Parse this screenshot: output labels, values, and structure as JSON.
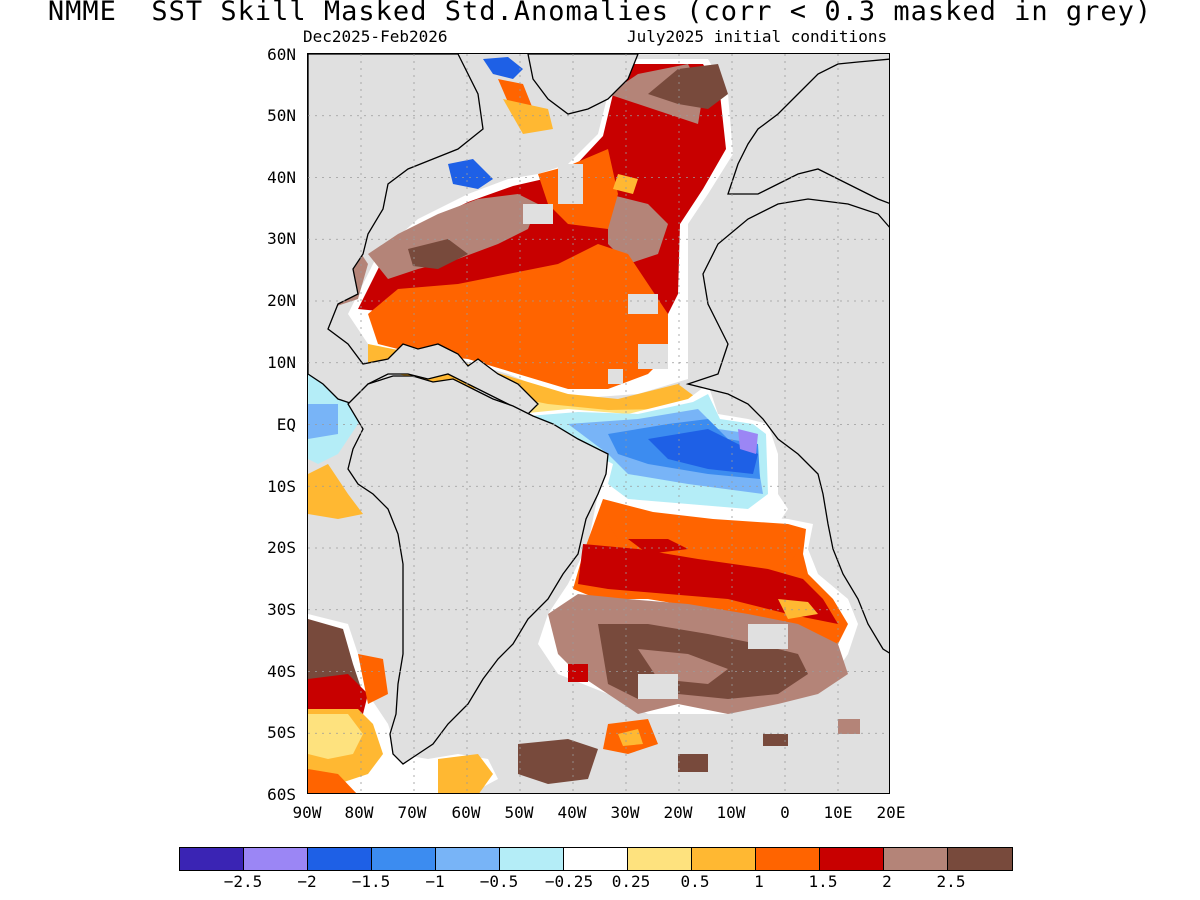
{
  "title": "NMME  SST Skill Masked Std.Anomalies (corr < 0.3 masked in grey)",
  "season": "Dec2025-Feb2026",
  "init": "July2025 initial conditions",
  "lat_labels": [
    "60N",
    "50N",
    "40N",
    "30N",
    "20N",
    "10N",
    "EQ",
    "10S",
    "20S",
    "30S",
    "40S",
    "50S",
    "60S"
  ],
  "lon_labels": [
    "90W",
    "80W",
    "70W",
    "60W",
    "50W",
    "40W",
    "30W",
    "20W",
    "10W",
    "0",
    "10E",
    "20E"
  ],
  "colorbar": {
    "colors": [
      "#3a24b4",
      "#9b86f5",
      "#1e60e6",
      "#3c8cf0",
      "#78b4f7",
      "#b4edf7",
      "#ffffff",
      "#fee27e",
      "#ffb832",
      "#ff6400",
      "#c80000",
      "#b48478",
      "#784a3c"
    ],
    "labels": [
      "−2.5",
      "−2",
      "−1.5",
      "−1",
      "−0.5",
      "−0.25",
      "0.25",
      "0.5",
      "1",
      "1.5",
      "2",
      "2.5"
    ]
  },
  "colors": {
    "land": "#e0e0e0",
    "masked": "#e0e0e0",
    "coast": "#000000"
  }
}
